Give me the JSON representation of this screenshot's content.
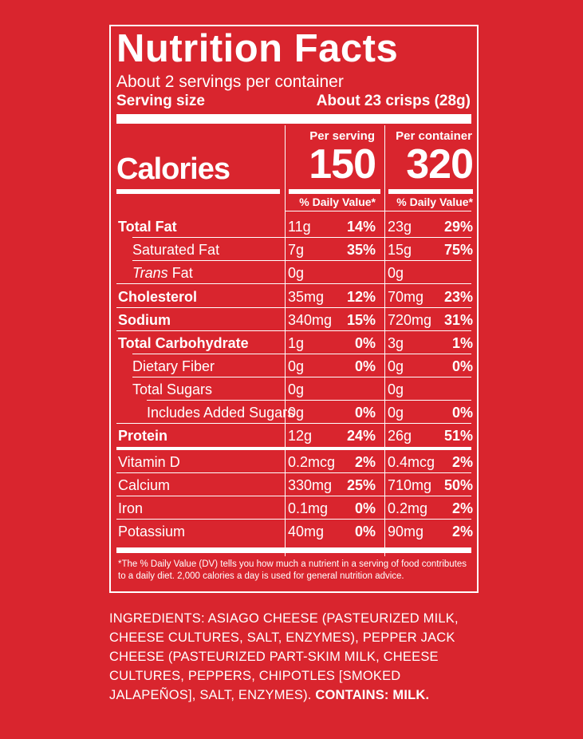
{
  "label": {
    "title": "Nutrition Facts",
    "servings_per_container": "About 2 servings per container",
    "serving_size_label": "Serving size",
    "serving_size_value": "About 23 crisps (28g)",
    "calories_label": "Calories",
    "columns": {
      "per_serving": "Per serving",
      "per_container": "Per container"
    },
    "calories_per_serving": "150",
    "calories_per_container": "320",
    "daily_value_header": "% Daily Value*",
    "rows": [
      {
        "label": "Total Fat",
        "serving_amt": "11g",
        "serving_pct": "14%",
        "container_amt": "23g",
        "container_pct": "29%"
      },
      {
        "label": "Saturated Fat",
        "serving_amt": "7g",
        "serving_pct": "35%",
        "container_amt": "15g",
        "container_pct": "75%"
      },
      {
        "label_italic": "Trans",
        "label_rest": " Fat",
        "serving_amt": "0g",
        "serving_pct": "",
        "container_amt": "0g",
        "container_pct": ""
      },
      {
        "label": "Cholesterol",
        "serving_amt": "35mg",
        "serving_pct": "12%",
        "container_amt": "70mg",
        "container_pct": "23%"
      },
      {
        "label": "Sodium",
        "serving_amt": "340mg",
        "serving_pct": "15%",
        "container_amt": "720mg",
        "container_pct": "31%"
      },
      {
        "label": "Total Carbohydrate",
        "serving_amt": "1g",
        "serving_pct": "0%",
        "container_amt": "3g",
        "container_pct": "1%"
      },
      {
        "label": "Dietary Fiber",
        "serving_amt": "0g",
        "serving_pct": "0%",
        "container_amt": "0g",
        "container_pct": "0%"
      },
      {
        "label": "Total Sugars",
        "serving_amt": "0g",
        "serving_pct": "",
        "container_amt": "0g",
        "container_pct": ""
      },
      {
        "label": "Includes Added Sugars",
        "serving_amt": "0g",
        "serving_pct": "0%",
        "container_amt": "0g",
        "container_pct": "0%"
      },
      {
        "label": "Protein",
        "serving_amt": "12g",
        "serving_pct": "24%",
        "container_amt": "26g",
        "container_pct": "51%"
      },
      {
        "label": "Vitamin D",
        "serving_amt": "0.2mcg",
        "serving_pct": "2%",
        "container_amt": "0.4mcg",
        "container_pct": "2%"
      },
      {
        "label": "Calcium",
        "serving_amt": "330mg",
        "serving_pct": "25%",
        "container_amt": "710mg",
        "container_pct": "50%"
      },
      {
        "label": "Iron",
        "serving_amt": "0.1mg",
        "serving_pct": "0%",
        "container_amt": "0.2mg",
        "container_pct": "2%"
      },
      {
        "label": "Potassium",
        "serving_amt": "40mg",
        "serving_pct": "0%",
        "container_amt": "90mg",
        "container_pct": "2%"
      }
    ],
    "footnote": "*The % Daily Value (DV) tells you how much a nutrient in a serving of food contributes to a daily diet. 2,000 calories a day is used for general nutrition advice."
  },
  "ingredients": {
    "text": "INGREDIENTS: ASIAGO CHEESE (PASTEURIZED MILK, CHEESE CULTURES, SALT, ENZYMES), PEPPER JACK CHEESE (PASTEURIZED PART-SKIM MILK, CHEESE CULTURES, PEPPERS, CHIPOTLES [SMOKED JALAPEÑOS], SALT, ENZYMES).",
    "contains": "CONTAINS: MILK."
  },
  "colors": {
    "background": "#d9252e",
    "ink": "#ffffff"
  }
}
